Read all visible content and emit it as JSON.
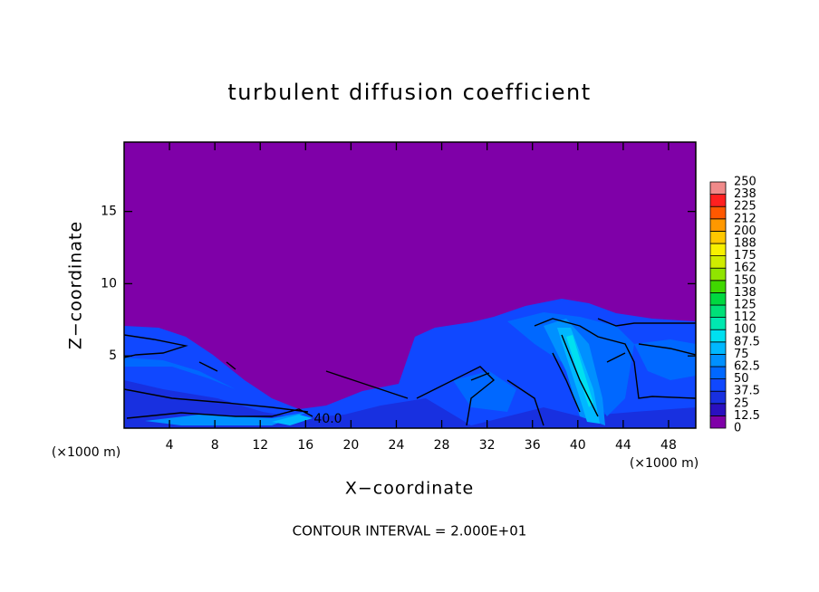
{
  "chart_data": {
    "type": "contour",
    "title": "turbulent diffusion coefficient",
    "x_label": "X−coordinate",
    "y_label": "Z−coordinate",
    "x_unit": "(×1000 m)",
    "y_unit": "(×1000 m)",
    "xlim": [
      0,
      50.4
    ],
    "xticks": [
      4,
      8,
      12,
      16,
      20,
      24,
      28,
      32,
      36,
      40,
      44,
      48
    ],
    "ylim": [
      0,
      19.8
    ],
    "yticks": [
      5,
      10,
      15
    ],
    "levels": [
      0,
      12.5,
      25,
      37.5,
      50,
      62.5,
      75,
      87.5,
      100,
      112,
      125,
      138,
      150,
      162,
      175,
      188,
      200,
      212,
      225,
      238,
      250
    ],
    "colors": [
      "#7f00a8",
      "#2a10c0",
      "#1830e0",
      "#1048ff",
      "#0068ff",
      "#0090ff",
      "#00b8ff",
      "#00e0f0",
      "#00e8b0",
      "#00e078",
      "#00d840",
      "#40d800",
      "#90e400",
      "#d0ec00",
      "#f8f000",
      "#ffc800",
      "#ff9800",
      "#ff5800",
      "#ff2020",
      "#f08a8a"
    ],
    "contour_label": "40.0",
    "footer": "CONTOUR INTERVAL = 2.000E+01"
  }
}
